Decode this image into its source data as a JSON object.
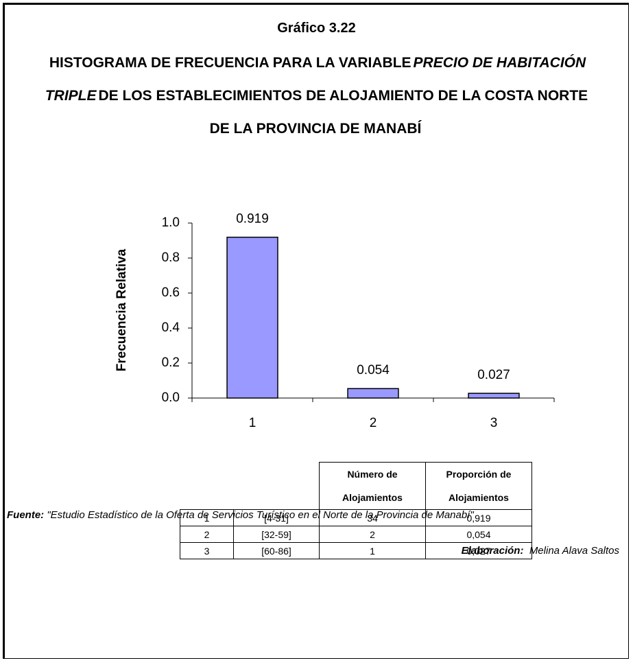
{
  "header": {
    "caption": "Gráfico 3.22",
    "title": [
      "HISTOGRAMA DE FRECUENCIA PARA LA VARIABLE",
      "PRECIO DE HABITACIÓN TRIPLE",
      "DE LOS ESTABLECIMIENTOS DE ALOJAMIENTO DE LA COSTA NORTE DE LA PROVINCIA DE MANABÍ"
    ]
  },
  "chart_data": {
    "type": "bar",
    "ylabel": "Frecuencia Relativa",
    "categories": [
      "1",
      "2",
      "3"
    ],
    "values": [
      0.919,
      0.054,
      0.027
    ],
    "color": "#9999ff",
    "ylim": [
      0,
      1
    ],
    "yticks": [
      {
        "value": 0,
        "label": "0.0"
      },
      0.2,
      0.4,
      0.6,
      0.8,
      {
        "value": 1,
        "label": "1.0"
      }
    ]
  },
  "table": {
    "columns": [
      "Número de Alojamientos",
      "Proporción de Alojamientos"
    ],
    "rows": [
      [
        "1",
        "[4-31]",
        "34",
        "0,919"
      ],
      [
        "2",
        "[32-59]",
        "2",
        "0,054"
      ],
      [
        "3",
        "[60-86]",
        "1",
        "0,027"
      ]
    ]
  },
  "footer": {
    "source_label": "Fuente:",
    "source": "\"Estudio Estadístico de la Oferta de Servicios Turístico en el Norte de la Provincia de Manabí\"",
    "credit_label": "Elaboración:",
    "credit": "Melina Alava Saltos"
  }
}
